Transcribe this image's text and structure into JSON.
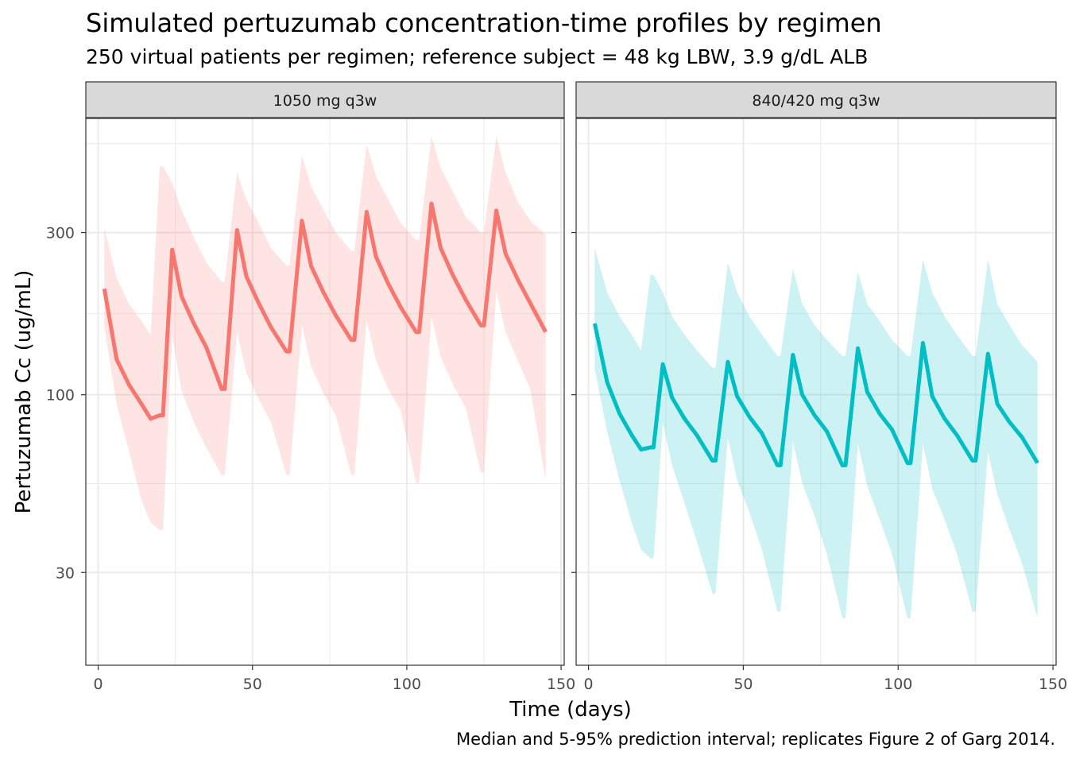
{
  "title": "Simulated pertuzumab concentration-time profiles by regimen",
  "subtitle": "250 virtual patients per regimen; reference subject = 48 kg LBW, 3.9 g/dL ALB",
  "caption": "Median and 5-95% prediction interval; replicates Figure 2 of Garg 2014.",
  "colors": {
    "series_1050": "#F8766D",
    "series_840": "#00BFC4",
    "strip_bg": "#D9D9D9",
    "grid": "#EBEBEB"
  },
  "chart_data": {
    "type": "line",
    "xlabel": "Time (days)",
    "ylabel": "Pertuzumab Cc (ug/mL)",
    "y_scale": "log10",
    "xlim": [
      -4,
      151
    ],
    "ylim": [
      16,
      650
    ],
    "x_ticks": [
      0,
      50,
      100,
      150
    ],
    "y_ticks": [
      30,
      100,
      300
    ],
    "grid": true,
    "legend": "none",
    "panels": [
      {
        "label": "1050 mg q3w",
        "color": "#F8766D",
        "x": [
          2,
          6,
          10,
          14,
          17,
          20,
          21,
          24,
          27,
          31,
          35,
          40,
          41,
          45,
          48,
          52,
          56,
          61,
          62,
          66,
          69,
          73,
          77,
          82,
          83,
          87,
          90,
          94,
          98,
          103,
          104,
          108,
          111,
          115,
          119,
          124,
          125,
          129,
          132,
          136,
          140,
          145
        ],
        "median": [
          205,
          127,
          107,
          94,
          85,
          87,
          87,
          267,
          195,
          162,
          138,
          104,
          104,
          305,
          223,
          186,
          158,
          134,
          134,
          325,
          239,
          200,
          171,
          145,
          145,
          345,
          255,
          212,
          181,
          153,
          153,
          365,
          270,
          224,
          191,
          160,
          160,
          348,
          260,
          218,
          186,
          153
        ],
        "p05": [
          158,
          94,
          68,
          49,
          42,
          40,
          40,
          149,
          103,
          83,
          70,
          58,
          58,
          153,
          116,
          97,
          83,
          58,
          58,
          161,
          121,
          101,
          87,
          58,
          58,
          166,
          126,
          104,
          90,
          55,
          55,
          170,
          129,
          107,
          92,
          59,
          59,
          202,
          153,
          126,
          104,
          56
        ],
        "p95": [
          310,
          220,
          185,
          165,
          150,
          470,
          470,
          420,
          350,
          290,
          245,
          215,
          215,
          450,
          375,
          320,
          270,
          240,
          240,
          505,
          410,
          350,
          300,
          265,
          265,
          545,
          440,
          375,
          320,
          285,
          285,
          575,
          465,
          395,
          335,
          300,
          300,
          575,
          450,
          370,
          325,
          295
        ]
      },
      {
        "label": "840/420 mg q3w",
        "color": "#00BFC4",
        "x": [
          2,
          6,
          10,
          14,
          17,
          20,
          21,
          24,
          27,
          31,
          35,
          40,
          41,
          45,
          48,
          52,
          56,
          61,
          62,
          66,
          69,
          73,
          77,
          82,
          83,
          87,
          90,
          94,
          98,
          103,
          104,
          108,
          111,
          115,
          119,
          124,
          125,
          129,
          132,
          136,
          140,
          145
        ],
        "median": [
          162,
          109,
          88,
          76,
          69,
          70,
          70,
          123,
          98,
          85,
          76,
          64,
          64,
          125,
          99,
          86,
          77,
          62,
          62,
          131,
          100,
          87,
          78,
          62,
          62,
          137,
          102,
          88,
          79,
          63,
          63,
          142,
          99,
          85,
          76,
          64,
          64,
          132,
          94,
          83,
          75,
          63
        ],
        "p05": [
          119,
          78,
          56,
          42,
          35,
          33,
          33,
          83,
          62,
          48,
          37,
          26,
          26,
          75,
          56,
          45,
          35,
          23,
          23,
          73,
          55,
          44,
          34,
          22,
          22,
          72,
          54,
          43,
          34,
          22,
          22,
          72,
          53,
          43,
          34,
          23,
          23,
          68,
          51,
          40,
          32,
          22
        ],
        "p95": [
          270,
          200,
          170,
          150,
          135,
          225,
          225,
          200,
          170,
          150,
          135,
          120,
          120,
          245,
          200,
          170,
          150,
          130,
          130,
          235,
          185,
          160,
          145,
          130,
          130,
          230,
          185,
          165,
          145,
          130,
          130,
          250,
          200,
          170,
          150,
          130,
          130,
          250,
          185,
          160,
          140,
          125
        ]
      }
    ]
  }
}
